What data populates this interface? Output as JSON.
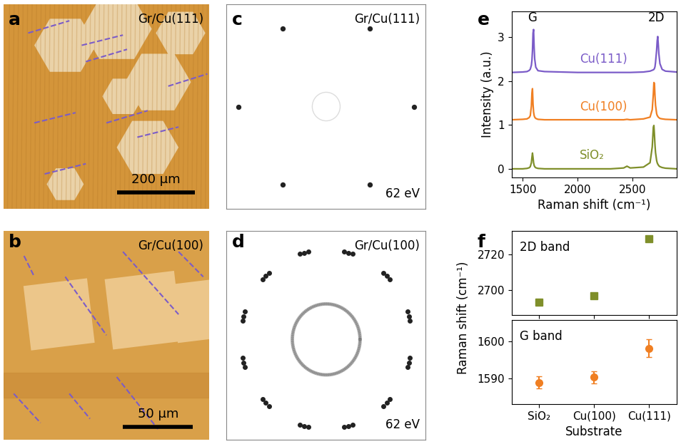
{
  "panel_labels": [
    "a",
    "b",
    "c",
    "d",
    "e",
    "f"
  ],
  "images": [
    {
      "label": "Gr/Cu(111)",
      "scale_bar": "200 μm"
    },
    {
      "label": "Gr/Cu(100)",
      "scale_bar": "50 μm"
    },
    {
      "label": "Gr/Cu(111)",
      "energy": "62 eV"
    },
    {
      "label": "Gr/Cu(100)",
      "energy": "62 eV"
    }
  ],
  "chart_data": [
    {
      "type": "line",
      "x_label": "Raman shift (cm⁻¹)",
      "y_label": "Intensity (a.u.)",
      "x": [
        1400,
        1500,
        1540,
        1560,
        1570,
        1580,
        1585,
        1590,
        1595,
        1600,
        1605,
        1610,
        1620,
        1640,
        1700,
        2000,
        2300,
        2420,
        2450,
        2480,
        2600,
        2660,
        2680,
        2690,
        2695,
        2700,
        2705,
        2710,
        2720,
        2725,
        2730,
        2735,
        2740,
        2750,
        2770,
        2800,
        2900
      ],
      "series": [
        {
          "name": "Cu(111)",
          "color": "#7b5cc8",
          "values": [
            2.2,
            2.21,
            2.22,
            2.245,
            2.275,
            2.365,
            2.475,
            2.7,
            3.1,
            3.18,
            2.77,
            2.51,
            2.32,
            2.24,
            2.22,
            2.2,
            2.2,
            2.2,
            2.2,
            2.2,
            2.21,
            2.23,
            2.25,
            2.26,
            2.27,
            2.29,
            2.33,
            2.43,
            2.71,
            2.92,
            3.02,
            2.84,
            2.63,
            2.4,
            2.27,
            2.23,
            2.21
          ]
        },
        {
          "name": "Cu(100)",
          "color": "#f07f22",
          "values": [
            1.12,
            1.13,
            1.14,
            1.17,
            1.215,
            1.43,
            1.73,
            1.83,
            1.48,
            1.3,
            1.22,
            1.18,
            1.15,
            1.13,
            1.12,
            1.12,
            1.12,
            1.12,
            1.13,
            1.12,
            1.14,
            1.18,
            1.35,
            1.71,
            1.97,
            1.95,
            1.66,
            1.45,
            1.26,
            1.22,
            1.2,
            1.18,
            1.17,
            1.15,
            1.14,
            1.13,
            1.12
          ]
        },
        {
          "name": "SiO₂",
          "color": "#7f8f2a",
          "values": [
            0,
            0,
            0.01,
            0.025,
            0.05,
            0.14,
            0.26,
            0.36,
            0.26,
            0.14,
            0.08,
            0.05,
            0.025,
            0.01,
            0,
            0,
            0,
            0.02,
            0.06,
            0.02,
            0.04,
            0.14,
            0.5,
            0.95,
            0.99,
            0.78,
            0.54,
            0.37,
            0.19,
            0.14,
            0.11,
            0.09,
            0.07,
            0.05,
            0.03,
            0.015,
            0
          ]
        }
      ],
      "annotations": [
        {
          "text": "G",
          "x": 1590,
          "y": 3.45
        },
        {
          "text": "2D",
          "x": 2715,
          "y": 3.45
        }
      ],
      "xlim": [
        1400,
        2900
      ],
      "xticks": [
        1500,
        2000,
        2500
      ],
      "ylim": [
        -0.2,
        3.6
      ],
      "yticks": [
        0,
        1,
        2,
        3
      ]
    },
    {
      "type": "scatter",
      "title": "2D band",
      "categories": [
        "SiO₂",
        "Cu(100)",
        "Cu(111)"
      ],
      "values": [
        2693.2,
        2697.0,
        2728.8
      ],
      "errors": [
        1.5,
        1.5,
        1.5
      ],
      "color": "#7f8f2a",
      "marker": "square",
      "tick_labels": "y",
      "ylim": [
        2686,
        2733
      ],
      "yticks": [
        2700,
        2720
      ]
    },
    {
      "type": "scatter",
      "title": "G band",
      "categories": [
        "SiO₂",
        "Cu(100)",
        "Cu(111)"
      ],
      "values": [
        1588.9,
        1590.3,
        1598.2
      ],
      "errors": [
        1.6,
        1.6,
        2.4
      ],
      "color": "#f07f22",
      "marker": "circle",
      "x_label": "Substrate",
      "y_label": "Raman shift (cm⁻¹)",
      "ylim": [
        1583,
        1606
      ],
      "yticks": [
        1590,
        1600
      ]
    }
  ]
}
